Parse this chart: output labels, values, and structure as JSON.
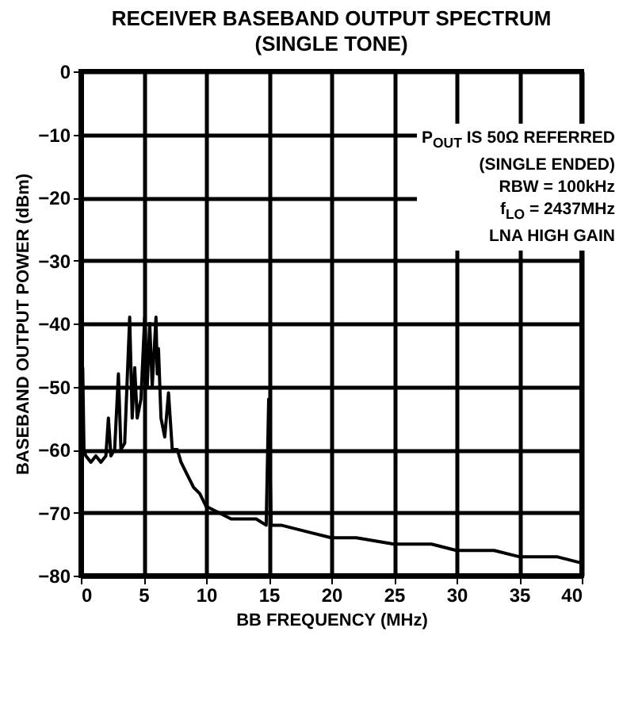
{
  "chart_data": {
    "type": "line",
    "title": "RECEIVER BASEBAND OUTPUT SPECTRUM",
    "subtitle": "(SINGLE TONE)",
    "xlabel": "BB FREQUENCY (MHz)",
    "ylabel": "BASEBAND OUTPUT POWER (dBm)",
    "annotations": [
      "P$_{OUT}$ IS 50Ω REFERRED",
      "(SINGLE ENDED)",
      "RBW = 100kHz",
      "f$_{LO}$ = 2437MHz",
      "LNA HIGH GAIN"
    ],
    "series": [
      {
        "color": "#000000",
        "x": [
          0.05,
          0.15,
          0.25,
          0.4,
          0.8,
          1.2,
          1.6,
          2.0,
          2.2,
          2.4,
          2.7,
          3.0,
          3.2,
          3.5,
          3.9,
          4.1,
          4.3,
          4.5,
          4.8,
          5.1,
          5.3,
          5.5,
          5.7,
          6.0,
          6.1,
          6.2,
          6.4,
          6.7,
          7.0,
          7.3,
          7.7,
          8.0,
          8.5,
          9.0,
          9.5,
          10,
          11,
          12,
          13,
          14,
          14.8,
          15,
          15.2,
          16,
          18,
          20,
          22,
          25,
          28,
          30,
          33,
          35,
          38,
          40
        ],
        "values": [
          -60,
          -47,
          -60,
          -61,
          -62,
          -61,
          -62,
          -61,
          -55,
          -61,
          -60,
          -48,
          -60,
          -59,
          -39,
          -55,
          -47,
          -55,
          -52,
          -39,
          -50,
          -40,
          -50,
          -39,
          -48,
          -44,
          -55,
          -58,
          -51,
          -60,
          -60,
          -62,
          -64,
          -66,
          -67,
          -69,
          -70,
          -71,
          -71,
          -71,
          -72,
          -52,
          -72,
          -72,
          -73,
          -74,
          -74,
          -75,
          -75,
          -76,
          -76,
          -77,
          -77,
          -78
        ]
      }
    ],
    "xlim": [
      0,
      40
    ],
    "ylim": [
      -80,
      0
    ],
    "xticks": [
      0,
      5,
      10,
      15,
      20,
      25,
      30,
      35,
      40
    ],
    "yticks": [
      0,
      -10,
      -20,
      -30,
      -40,
      -50,
      -60,
      -70,
      -80
    ],
    "grid": true,
    "line_style": "solid",
    "marker": "none"
  }
}
